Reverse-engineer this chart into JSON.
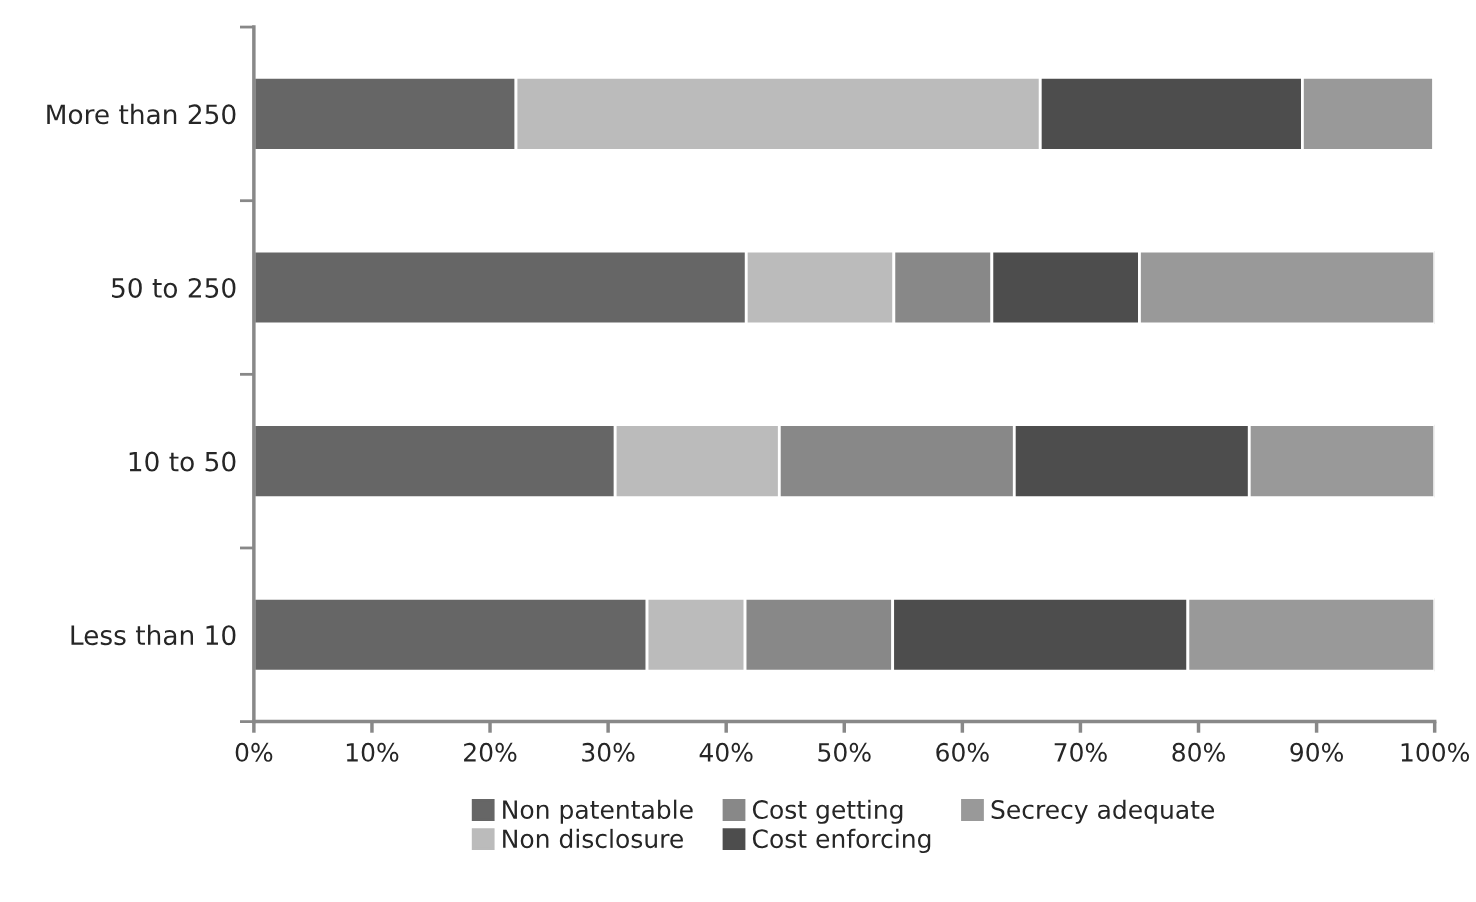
{
  "chart_data": {
    "type": "bar",
    "orientation": "horizontal",
    "stacked": true,
    "categories": [
      "More than 250",
      "50 to 250",
      "10 to 50",
      "Less than 10"
    ],
    "series": [
      {
        "name": "Non patentable",
        "color": "#666666",
        "values": [
          22.2,
          41.7,
          30.6,
          33.3
        ]
      },
      {
        "name": "Non disclosure",
        "color": "#bbbbbb",
        "values": [
          44.4,
          12.5,
          13.9,
          8.3
        ]
      },
      {
        "name": "Cost getting",
        "color": "#888888",
        "values": [
          0,
          8.3,
          19.9,
          12.5
        ]
      },
      {
        "name": "Cost enforcing",
        "color": "#4d4d4d",
        "values": [
          22.2,
          12.5,
          19.9,
          25.0
        ]
      },
      {
        "name": "Secrecy adequate",
        "color": "#999999",
        "values": [
          11.1,
          25.0,
          15.7,
          20.9
        ]
      }
    ],
    "xlim": [
      0,
      100
    ],
    "xticks": [
      {
        "value": 0,
        "label": "0%"
      },
      {
        "value": 10,
        "label": "10%"
      },
      {
        "value": 20,
        "label": "20%"
      },
      {
        "value": 30,
        "label": "30%"
      },
      {
        "value": 40,
        "label": "40%"
      },
      {
        "value": 50,
        "label": "50%"
      },
      {
        "value": 60,
        "label": "60%"
      },
      {
        "value": 70,
        "label": "70%"
      },
      {
        "value": 80,
        "label": "80%"
      },
      {
        "value": 90,
        "label": "90%"
      },
      {
        "value": 100,
        "label": "100%"
      }
    ],
    "grid": false,
    "legend": "bottom"
  }
}
